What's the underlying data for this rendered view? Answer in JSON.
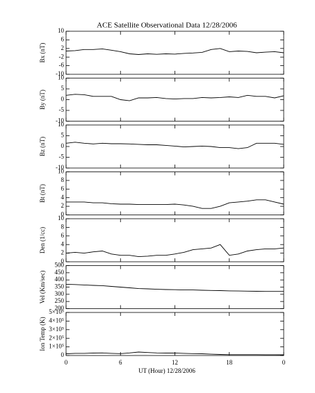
{
  "chart_data": [
    {
      "type": "line",
      "title": "ACE Satellite Observational Data   12/28/2006",
      "ylabel": "Bx (nT)",
      "color": "#000000",
      "x": [
        0,
        1,
        2,
        3,
        4,
        5,
        6,
        7,
        8,
        9,
        10,
        11,
        12,
        13,
        14,
        15,
        16,
        17,
        18,
        19,
        20,
        21,
        22,
        23,
        24
      ],
      "xlim": [
        0,
        24
      ],
      "xticks": [
        0,
        6,
        12,
        18,
        {
          "value": 24,
          "label": "0"
        }
      ],
      "ylim": [
        -10,
        10
      ],
      "yticks": [
        -10,
        -6,
        -2,
        2,
        6,
        10
      ],
      "values": [
        0.8,
        1,
        1.5,
        1.5,
        1.8,
        1.2,
        0.5,
        -0.5,
        -0.8,
        -0.5,
        -0.7,
        -0.5,
        -0.6,
        -0.3,
        -0.1,
        0.2,
        1.5,
        2,
        0.5,
        0.8,
        0.6,
        0,
        0.3,
        0.5,
        0
      ]
    },
    {
      "type": "line",
      "ylabel": "By (nT)",
      "color": "#000000",
      "x": [
        0,
        1,
        2,
        3,
        4,
        5,
        6,
        7,
        8,
        9,
        10,
        11,
        12,
        13,
        14,
        15,
        16,
        17,
        18,
        19,
        20,
        21,
        22,
        23,
        24
      ],
      "xlim": [
        0,
        24
      ],
      "xticks": [
        0,
        6,
        12,
        18,
        {
          "value": 24,
          "label": "0"
        }
      ],
      "ylim": [
        -10,
        10
      ],
      "yticks": [
        -10,
        -5,
        0,
        5,
        10
      ],
      "values": [
        2,
        2.5,
        2.3,
        1.5,
        1.5,
        1.5,
        0,
        -0.5,
        0.8,
        0.8,
        1,
        0.5,
        0.3,
        0.5,
        0.5,
        1,
        0.8,
        1,
        1.3,
        1,
        2,
        1.5,
        1.5,
        0.8,
        1.8
      ]
    },
    {
      "type": "line",
      "ylabel": "Bz (nT)",
      "color": "#000000",
      "x": [
        0,
        1,
        2,
        3,
        4,
        5,
        6,
        7,
        8,
        9,
        10,
        11,
        12,
        13,
        14,
        15,
        16,
        17,
        18,
        19,
        20,
        21,
        22,
        23,
        24
      ],
      "xlim": [
        0,
        24
      ],
      "xticks": [
        0,
        6,
        12,
        18,
        {
          "value": 24,
          "label": "0"
        }
      ],
      "ylim": [
        -10,
        10
      ],
      "yticks": [
        -10,
        -5,
        0,
        5,
        10
      ],
      "values": [
        1.5,
        2,
        1.5,
        1.2,
        1.5,
        1.3,
        1.3,
        1.2,
        1,
        0.8,
        0.8,
        0.5,
        0.2,
        -0.2,
        0,
        0.2,
        0,
        -0.5,
        -0.5,
        -1,
        -0.5,
        1.5,
        1.5,
        1.5,
        1
      ]
    },
    {
      "type": "line",
      "ylabel": "Bt (nT)",
      "color": "#000000",
      "x": [
        0,
        1,
        2,
        3,
        4,
        5,
        6,
        7,
        8,
        9,
        10,
        11,
        12,
        13,
        14,
        15,
        16,
        17,
        18,
        19,
        20,
        21,
        22,
        23,
        24
      ],
      "xlim": [
        0,
        24
      ],
      "xticks": [
        0,
        6,
        12,
        18,
        {
          "value": 24,
          "label": "0"
        }
      ],
      "ylim": [
        0,
        10
      ],
      "yticks": [
        0,
        2,
        4,
        6,
        8,
        10
      ],
      "values": [
        3,
        3,
        3,
        2.8,
        2.8,
        2.6,
        2.5,
        2.5,
        2.4,
        2.4,
        2.4,
        2.4,
        2.5,
        2.3,
        2,
        1.5,
        1.5,
        2,
        2.8,
        3,
        3.2,
        3.5,
        3.5,
        3,
        2.5
      ]
    },
    {
      "type": "line",
      "ylabel": "Den (1/cc)",
      "color": "#000000",
      "x": [
        0,
        1,
        2,
        3,
        4,
        5,
        6,
        7,
        8,
        9,
        10,
        11,
        12,
        13,
        14,
        15,
        16,
        17,
        18,
        19,
        20,
        21,
        22,
        23,
        24
      ],
      "xlim": [
        0,
        24
      ],
      "xticks": [
        0,
        6,
        12,
        18,
        {
          "value": 24,
          "label": "0"
        }
      ],
      "ylim": [
        0,
        10
      ],
      "yticks": [
        0,
        2,
        4,
        6,
        8,
        10
      ],
      "values": [
        2,
        2.2,
        2,
        2.3,
        2.5,
        1.8,
        1.5,
        1.5,
        1.2,
        1.3,
        1.5,
        1.5,
        1.8,
        2.2,
        2.8,
        3,
        3.2,
        4,
        1.5,
        1.8,
        2.5,
        2.8,
        3,
        3,
        3.2
      ]
    },
    {
      "type": "line",
      "ylabel": "Vel (Km/sec)",
      "color": "#000000",
      "x": [
        0,
        1,
        2,
        3,
        4,
        5,
        6,
        7,
        8,
        9,
        10,
        11,
        12,
        13,
        14,
        15,
        16,
        17,
        18,
        19,
        20,
        21,
        22,
        23,
        24
      ],
      "xlim": [
        0,
        24
      ],
      "xticks": [
        0,
        6,
        12,
        18,
        {
          "value": 24,
          "label": "0"
        }
      ],
      "ylim": [
        200,
        500
      ],
      "yticks": [
        200,
        250,
        300,
        350,
        400,
        450,
        500
      ],
      "values": [
        370,
        368,
        365,
        362,
        360,
        355,
        350,
        345,
        340,
        338,
        335,
        333,
        332,
        330,
        330,
        328,
        327,
        326,
        324,
        323,
        322,
        321,
        320,
        320,
        320
      ]
    },
    {
      "type": "line",
      "ylabel": "Ion Temp (K)",
      "xlabel": "UT (Hour)  12/28/2006",
      "color": "#000000",
      "x": [
        0,
        1,
        2,
        3,
        4,
        5,
        6,
        7,
        8,
        9,
        10,
        11,
        12,
        13,
        14,
        15,
        16,
        17,
        18,
        19,
        20,
        21,
        22,
        23,
        24
      ],
      "xlim": [
        0,
        24
      ],
      "xticks": [
        0,
        6,
        12,
        18,
        {
          "value": 24,
          "label": "0"
        }
      ],
      "ylim": [
        0,
        500000
      ],
      "yticks": [
        0,
        {
          "value": 100000,
          "label": "1×10⁵"
        },
        {
          "value": 200000,
          "label": "2×10⁵"
        },
        {
          "value": 300000,
          "label": "3×10⁵"
        },
        {
          "value": 400000,
          "label": "4×10⁵"
        },
        {
          "value": 500000,
          "label": "5×10⁵"
        }
      ],
      "values": [
        20000,
        25000,
        25000,
        28000,
        30000,
        25000,
        22000,
        30000,
        40000,
        35000,
        30000,
        28000,
        28000,
        25000,
        22000,
        20000,
        15000,
        12000,
        10000,
        10000,
        10000,
        10000,
        9000,
        9000,
        8000
      ]
    }
  ]
}
